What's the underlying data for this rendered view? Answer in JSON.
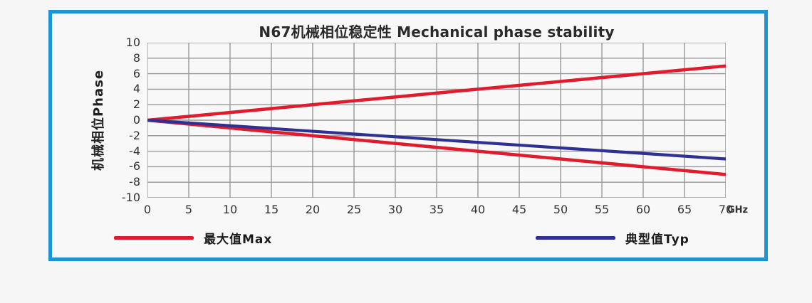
{
  "panel": {
    "border_color": "#1b95d8",
    "background": "#f8f8f9"
  },
  "chart_data": {
    "type": "line",
    "title": "N67机械相位稳定性 Mechanical phase stability",
    "ylabel": "机械相位Phase",
    "xlabel": "",
    "x_unit": "GHz",
    "xlim": [
      0,
      70
    ],
    "ylim": [
      -10,
      10
    ],
    "x_ticks": [
      0,
      5,
      10,
      15,
      20,
      25,
      30,
      35,
      40,
      45,
      50,
      55,
      60,
      65,
      70
    ],
    "y_ticks": [
      10,
      8,
      6,
      4,
      2,
      0,
      -2,
      -4,
      -6,
      -8,
      -10
    ],
    "grid": true,
    "grid_color": "#979797",
    "series": [
      {
        "name": "最大值Max (upper bound)",
        "color": "#e11a2c",
        "width": 4.5,
        "x": [
          0,
          70
        ],
        "y": [
          0,
          7
        ]
      },
      {
        "name": "最大值Max (lower bound)",
        "color": "#e11a2c",
        "width": 4.5,
        "x": [
          0,
          70
        ],
        "y": [
          0,
          -7
        ]
      },
      {
        "name": "典型值Typ",
        "color": "#2e3192",
        "width": 4.2,
        "x": [
          0,
          70
        ],
        "y": [
          0,
          -5
        ]
      }
    ],
    "legend": [
      {
        "label": "最大值Max",
        "color": "#e11a2c"
      },
      {
        "label": "典型值Typ",
        "color": "#2e3192"
      }
    ],
    "legend_position": "bottom"
  }
}
